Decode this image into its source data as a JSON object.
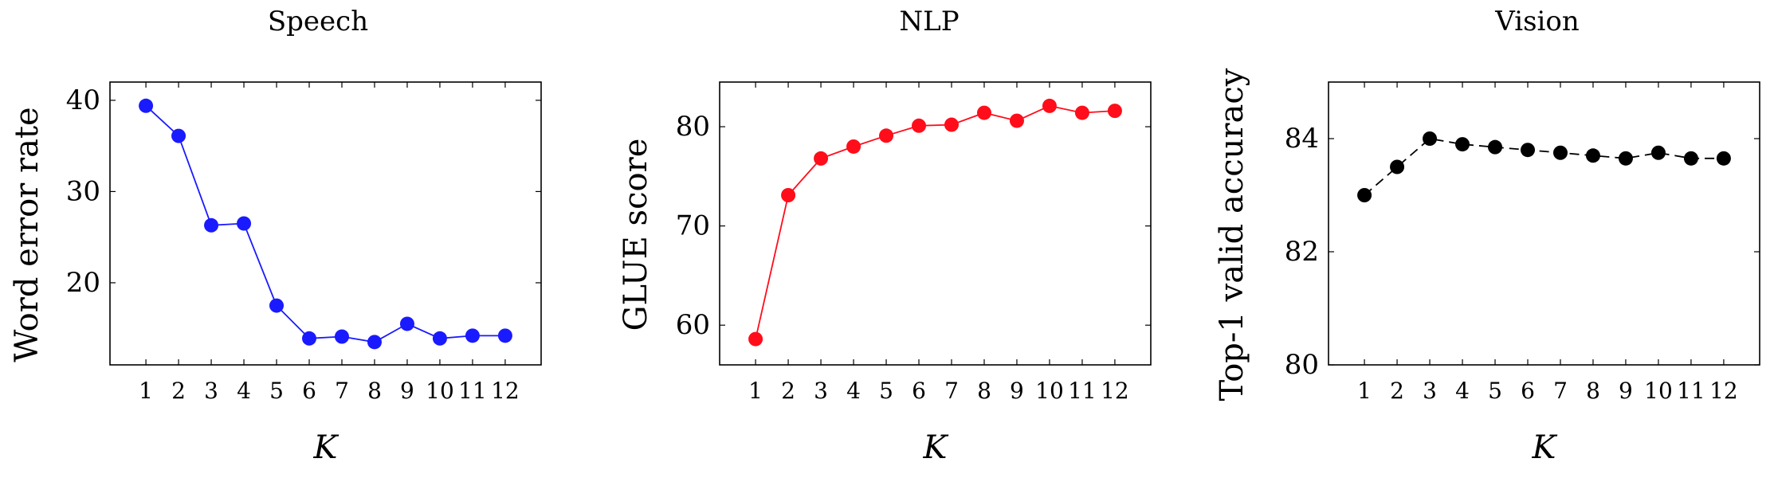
{
  "chart_data": [
    {
      "type": "line",
      "title": "Speech",
      "xlabel": "K",
      "ylabel": "Word error rate",
      "x": [
        1,
        2,
        3,
        4,
        5,
        6,
        7,
        8,
        9,
        10,
        11,
        12
      ],
      "xticks": [
        "1",
        "2",
        "3",
        "4",
        "5",
        "6",
        "7",
        "8",
        "9",
        "10",
        "11",
        "12"
      ],
      "xlim": [
        -0.1,
        13.1
      ],
      "ylim": [
        11,
        42
      ],
      "yticks": [
        20,
        30,
        40
      ],
      "ytick_labels": [
        "20",
        "30",
        "40"
      ],
      "series": [
        {
          "color": "#1a1aff",
          "line_style": "solid",
          "values": [
            39.4,
            36.1,
            26.3,
            26.5,
            17.5,
            13.9,
            14.1,
            13.5,
            15.5,
            13.9,
            14.2,
            14.2
          ]
        }
      ],
      "grid": false
    },
    {
      "type": "line",
      "title": "NLP",
      "xlabel": "K",
      "ylabel": "GLUE score",
      "x": [
        1,
        2,
        3,
        4,
        5,
        6,
        7,
        8,
        9,
        10,
        11,
        12
      ],
      "xticks": [
        "1",
        "2",
        "3",
        "4",
        "5",
        "6",
        "7",
        "8",
        "9",
        "10",
        "11",
        "12"
      ],
      "xlim": [
        -0.1,
        13.1
      ],
      "ylim": [
        56,
        84.5
      ],
      "yticks": [
        60,
        70,
        80
      ],
      "ytick_labels": [
        "60",
        "70",
        "80"
      ],
      "series": [
        {
          "color": "#ff0d1a",
          "line_style": "solid",
          "values": [
            58.6,
            73.1,
            76.8,
            78.0,
            79.1,
            80.1,
            80.2,
            81.4,
            80.6,
            82.1,
            81.4,
            81.6
          ]
        }
      ],
      "grid": false
    },
    {
      "type": "line",
      "title": "Vision",
      "xlabel": "K",
      "ylabel": "Top-1 valid accuracy",
      "x": [
        1,
        2,
        3,
        4,
        5,
        6,
        7,
        8,
        9,
        10,
        11,
        12
      ],
      "xticks": [
        "1",
        "2",
        "3",
        "4",
        "5",
        "6",
        "7",
        "8",
        "9",
        "10",
        "11",
        "12"
      ],
      "xlim": [
        -0.1,
        13.1
      ],
      "ylim": [
        80,
        85
      ],
      "yticks": [
        80,
        82,
        84
      ],
      "ytick_labels": [
        "80",
        "82",
        "84"
      ],
      "series": [
        {
          "color": "#000000",
          "line_style": "dashed",
          "values": [
            83.0,
            83.5,
            84.0,
            83.9,
            83.85,
            83.8,
            83.75,
            83.7,
            83.65,
            83.75,
            83.65,
            83.65
          ]
        }
      ],
      "grid": false
    }
  ]
}
